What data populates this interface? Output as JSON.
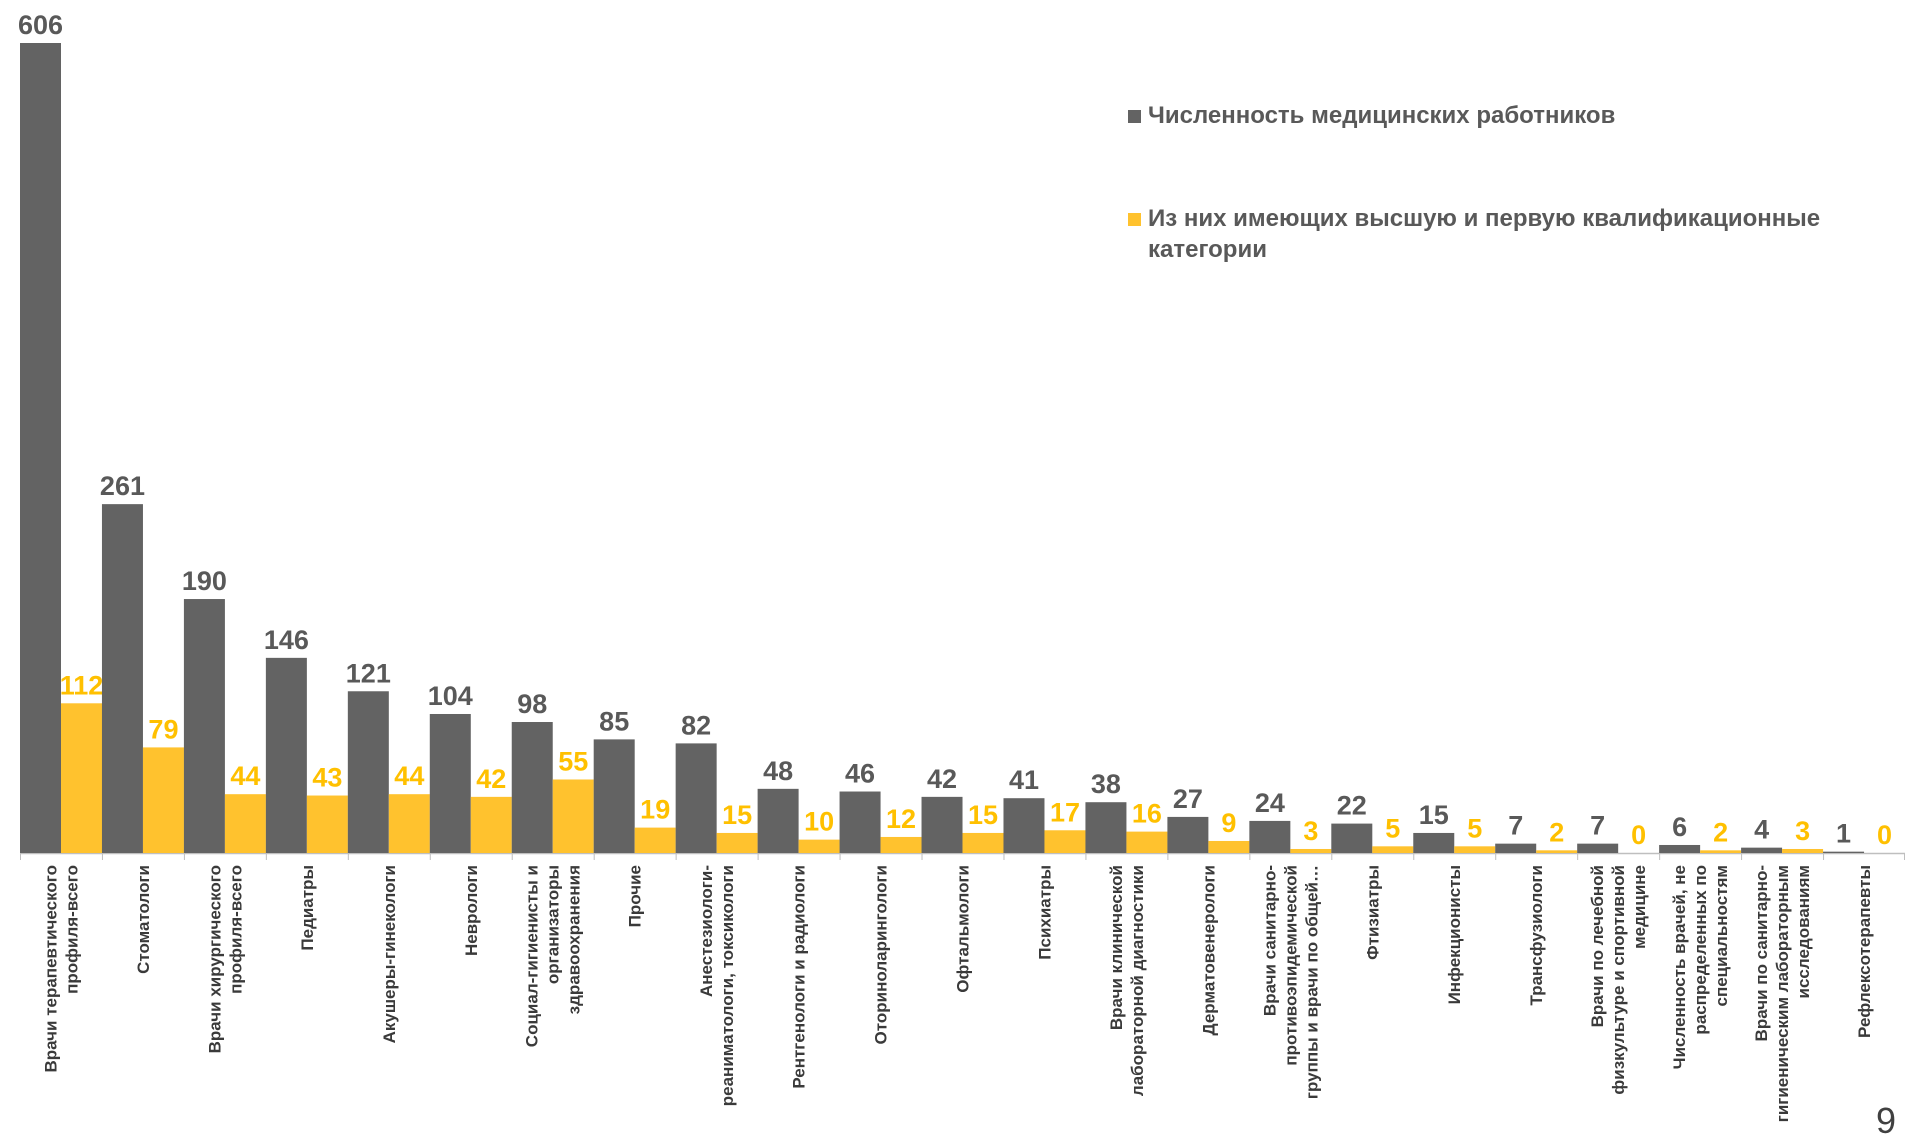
{
  "chart_data": {
    "type": "bar",
    "categories": [
      "Врачи терапевтического профиля-всего",
      "Стоматологи",
      "Врачи хирургического профиля-всего",
      "Педиатры",
      "Акушеры-гинекологи",
      "Неврологи",
      "Социал-гигиенисты и организаторы здравоохранения",
      "Прочие",
      "Анестезиологи-реаниматологи, токсикологи",
      "Рентгенологи и радиологи",
      "Оториноларингологи",
      "Офтальмологи",
      "Психиатры",
      "Врачи клинической лабораторной диагностики",
      "Дерматовенерологи",
      "Врачи санитарно-противоэпидемической группы и врачи по общей…",
      "Фтизиатры",
      "Инфекционисты",
      "Трансфузиологи",
      "Врачи по лечебной физкультуре и спортивной медицине",
      "Численность врачей, не распределенных по специальностям",
      "Врачи по санитарно-гигиеническим лабораторным исследованиям",
      "Рефлексотерапевты"
    ],
    "category_lines": [
      [
        "Врачи терапевтического",
        "профиля-всего"
      ],
      [
        "Стоматологи"
      ],
      [
        "Врачи хирургического",
        "профиля-всего"
      ],
      [
        "Педиатры"
      ],
      [
        "Акушеры-гинекологи"
      ],
      [
        "Неврологи"
      ],
      [
        "Социал-гигиенисты и",
        "организаторы",
        "здравоохранения"
      ],
      [
        "Прочие"
      ],
      [
        "Анестезиологи-",
        "реаниматологи, токсикологи"
      ],
      [
        "Рентгенологи и радиологи"
      ],
      [
        "Оториноларингологи"
      ],
      [
        "Офтальмологи"
      ],
      [
        "Психиатры"
      ],
      [
        "Врачи клинической",
        "лабораторной диагностики"
      ],
      [
        "Дерматовенерологи"
      ],
      [
        "Врачи санитарно-",
        "противоэпидемической",
        "группы и врачи по общей…"
      ],
      [
        "Фтизиатры"
      ],
      [
        "Инфекционисты"
      ],
      [
        "Трансфузиологи"
      ],
      [
        "Врачи по лечебной",
        "физкультуре и спортивной",
        "медицине"
      ],
      [
        "Численность врачей, не",
        "распределенных по",
        "специальностям"
      ],
      [
        "Врачи по санитарно-",
        "гигиеническим лабораторным",
        "исследованиям"
      ],
      [
        "Рефлексотерапевты"
      ]
    ],
    "series": [
      {
        "name": "Численность медицинских работников",
        "color": "#636363",
        "label_color": "#595959",
        "values": [
          606,
          261,
          190,
          146,
          121,
          104,
          98,
          85,
          82,
          48,
          46,
          42,
          41,
          38,
          27,
          24,
          22,
          15,
          7,
          7,
          6,
          4,
          1
        ]
      },
      {
        "name": "Из них имеющих высшую и первую квалификационные категории",
        "color": "#FFC22E",
        "label_color": "#FFC000",
        "values": [
          112,
          79,
          44,
          43,
          44,
          42,
          55,
          19,
          15,
          10,
          12,
          15,
          17,
          16,
          9,
          3,
          5,
          5,
          2,
          0,
          2,
          3,
          0
        ]
      }
    ],
    "ylim": [
      0,
      606
    ],
    "grid": false,
    "legend_position": "top-right"
  },
  "legend": {
    "items": [
      {
        "label": "Численность медицинских работников",
        "color": "#636363"
      },
      {
        "label": "Из них имеющих высшую и первую квалификационные категории",
        "color": "#FFC22E"
      }
    ]
  },
  "page": {
    "number": "9"
  }
}
